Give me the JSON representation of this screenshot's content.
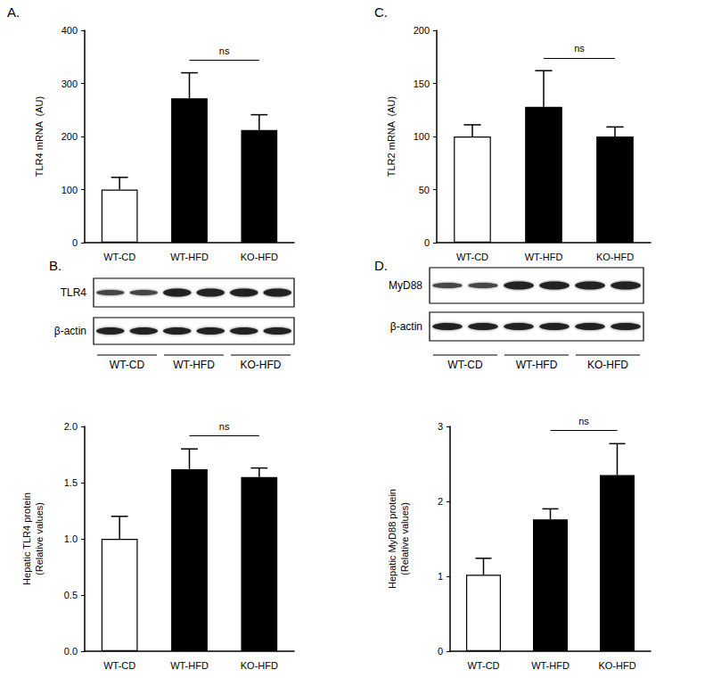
{
  "chart_data": [
    {
      "type": "bar",
      "panel": "A.",
      "ylabel": "TLR4 mRNA  (AU)",
      "categories": [
        "WT-CD",
        "WT-HFD",
        "KO-HFD"
      ],
      "values": [
        100,
        272,
        212
      ],
      "errors": [
        23,
        48,
        29
      ],
      "colors": [
        "#ffffff",
        "#000000",
        "#000000"
      ],
      "ylim": [
        0,
        400
      ],
      "yticks": [
        0,
        100,
        200,
        300,
        400
      ],
      "grid": false,
      "annotation": "ns"
    },
    {
      "type": "bar",
      "panel": "C.",
      "ylabel": "TLR2 mRNA  (AU)",
      "categories": [
        "WT-CD",
        "WT-HFD",
        "KO-HFD"
      ],
      "values": [
        100,
        128,
        100
      ],
      "errors": [
        11,
        34,
        9
      ],
      "colors": [
        "#ffffff",
        "#000000",
        "#000000"
      ],
      "ylim": [
        0,
        200
      ],
      "yticks": [
        0,
        50,
        100,
        150,
        200
      ],
      "grid": false,
      "annotation": "ns"
    },
    {
      "type": "bar",
      "ylabel": "Hepatic TLR4 protein\n(Relative values)",
      "categories": [
        "WT-CD",
        "WT-HFD",
        "KO-HFD"
      ],
      "values": [
        1.0,
        1.62,
        1.55
      ],
      "errors": [
        0.2,
        0.18,
        0.08
      ],
      "colors": [
        "#ffffff",
        "#000000",
        "#000000"
      ],
      "ylim": [
        0,
        2
      ],
      "yticks": [
        {
          "value": 0,
          "label": "0.0"
        },
        0.5,
        {
          "value": 1,
          "label": "1.0"
        },
        1.5,
        {
          "value": 2,
          "label": "2.0"
        }
      ],
      "grid": false,
      "annotation": "ns"
    },
    {
      "type": "bar",
      "ylabel": "Hepatic MyD88 protein\n(Relative values)",
      "categories": [
        "WT-CD",
        "WT-HFD",
        "KO-HFD"
      ],
      "values": [
        1.02,
        1.76,
        2.35
      ],
      "errors": [
        0.22,
        0.14,
        0.42
      ],
      "colors": [
        "#ffffff",
        "#000000",
        "#000000"
      ],
      "ylim": [
        0,
        3
      ],
      "yticks": [
        0,
        1,
        2,
        3
      ],
      "grid": false,
      "annotation": "ns"
    }
  ],
  "blots": [
    {
      "panel": "B.",
      "rows": [
        "TLR4",
        "β-actin"
      ],
      "groups": [
        "WT-CD",
        "WT-HFD",
        "KO-HFD"
      ]
    },
    {
      "panel": "D.",
      "rows": [
        "MyD88",
        "β-actin"
      ],
      "groups": [
        "WT-CD",
        "WT-HFD",
        "KO-HFD"
      ]
    }
  ]
}
